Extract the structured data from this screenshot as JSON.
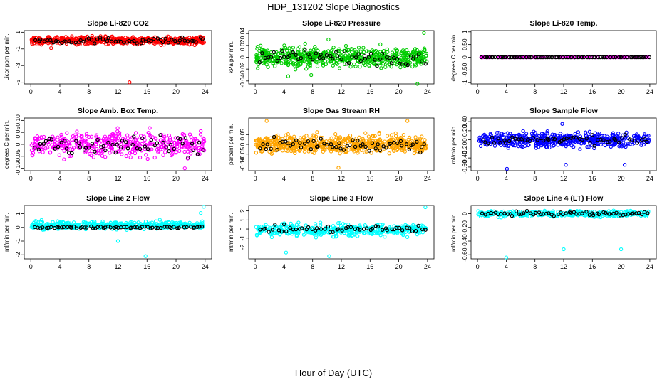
{
  "page_title": "HDP_131202  Slope Diagnostics",
  "xlabel": "Hour of Day (UTC)",
  "chart_data": [
    {
      "type": "scatter",
      "title": "Slope Li-820 CO2",
      "ylabel": "Licor ppm per min.",
      "color": "#ff0000",
      "xlim": [
        0,
        24
      ],
      "ylim": [
        -5.2,
        1.2
      ],
      "yticks": [
        -5,
        -3,
        -1,
        1
      ],
      "xticks": [
        0,
        4,
        8,
        12,
        16,
        20,
        24
      ],
      "main": {
        "center": 0.0,
        "spread": 0.35,
        "n": 600
      },
      "outliers": [
        {
          "x": 2.8,
          "y": -0.9
        },
        {
          "x": 13.6,
          "y": -5.0
        }
      ],
      "black": {
        "n": 60,
        "center": 0.0,
        "spread": 0.3
      }
    },
    {
      "type": "scatter",
      "title": "Slope Li-820 Pressure",
      "ylabel": "kPa per min.",
      "color": "#00cc00",
      "xlim": [
        0,
        24
      ],
      "ylim": [
        -0.045,
        0.045
      ],
      "yticks": [
        -0.04,
        -0.02,
        0.0,
        0.02,
        0.04
      ],
      "xticks": [
        0,
        4,
        8,
        12,
        16,
        20,
        24
      ],
      "main": {
        "center": 0.0,
        "spread": 0.013,
        "n": 600
      },
      "outliers": [
        {
          "x": 23.5,
          "y": 0.041
        },
        {
          "x": 10.2,
          "y": 0.03
        },
        {
          "x": 4.6,
          "y": -0.032
        },
        {
          "x": 22.6,
          "y": -0.045
        },
        {
          "x": 7.8,
          "y": -0.03
        }
      ],
      "black": {
        "n": 60,
        "center": 0.0,
        "spread": 0.01
      }
    },
    {
      "type": "scatter",
      "title": "Slope Li-820 Temp.",
      "ylabel": "degrees C per min.",
      "color": "#ff00ff",
      "xlim": [
        0,
        24
      ],
      "ylim": [
        -1.05,
        1.05
      ],
      "yticks": [
        -1.0,
        -0.5,
        0.0,
        0.5,
        1.0
      ],
      "xticks": [
        0,
        4,
        8,
        12,
        16,
        20,
        24
      ],
      "main": {
        "center": 0.0,
        "spread": 0.0,
        "n": 120
      },
      "outliers": [],
      "black": {
        "n": 90,
        "center": 0.0,
        "spread": 0.0
      }
    },
    {
      "type": "scatter",
      "title": "Slope Amb. Box Temp.",
      "ylabel": "degrees C per min.",
      "color": "#ff00ff",
      "xlim": [
        0,
        24
      ],
      "ylim": [
        -0.11,
        0.11
      ],
      "yticks": [
        -0.1,
        -0.05,
        0.0,
        0.05,
        0.1
      ],
      "xticks": [
        0,
        4,
        8,
        12,
        16,
        20,
        24
      ],
      "main": {
        "center": 0.0,
        "spread": 0.04,
        "n": 450
      },
      "outliers": [
        {
          "x": 21.2,
          "y": -0.1
        }
      ],
      "black": {
        "n": 60,
        "center": 0.0,
        "spread": 0.035
      }
    },
    {
      "type": "scatter",
      "title": "Slope Gas Stream RH",
      "ylabel": "percent per min.",
      "color": "#ffa500",
      "xlim": [
        0,
        24
      ],
      "ylim": [
        -0.135,
        0.135
      ],
      "yticks": [
        -0.1,
        -0.05,
        0.0,
        0.05
      ],
      "xticks": [
        0,
        4,
        8,
        12,
        16,
        20,
        24
      ],
      "main": {
        "center": 0.0,
        "spread": 0.035,
        "n": 650
      },
      "outliers": [
        {
          "x": 1.6,
          "y": 0.12
        },
        {
          "x": 21.2,
          "y": 0.12
        },
        {
          "x": 11.6,
          "y": -0.12
        }
      ],
      "black": {
        "n": 60,
        "center": 0.0,
        "spread": 0.03
      }
    },
    {
      "type": "scatter",
      "title": "Slope Sample Flow",
      "ylabel": "ml/min per min.",
      "color": "#0000ff",
      "xlim": [
        0,
        24
      ],
      "ylim": [
        -0.68,
        0.48
      ],
      "yticks": [
        -0.6,
        -0.4,
        -0.2,
        0.0,
        0.2,
        0.4
      ],
      "xticks": [
        0,
        4,
        8,
        12,
        16,
        20,
        24
      ],
      "main": {
        "center": 0.0,
        "spread": 0.13,
        "n": 500
      },
      "outliers": [
        {
          "x": 4.1,
          "y": -0.64
        },
        {
          "x": 12.3,
          "y": -0.55
        },
        {
          "x": 20.5,
          "y": -0.55
        },
        {
          "x": 11.8,
          "y": 0.35
        }
      ],
      "black": {
        "n": 55,
        "center": 0.0,
        "spread": 0.08
      }
    },
    {
      "type": "scatter",
      "title": "Slope Line 2 Flow",
      "ylabel": "ml/min per min.",
      "color": "#00ffff",
      "xlim": [
        0,
        24
      ],
      "ylim": [
        -2.3,
        1.6
      ],
      "yticks": [
        -2,
        -1,
        0,
        1
      ],
      "xticks": [
        0,
        4,
        8,
        12,
        16,
        20,
        24
      ],
      "main": {
        "center": 0.15,
        "spread": 0.22,
        "n": 450
      },
      "outliers": [
        {
          "x": 12.0,
          "y": -1.0
        },
        {
          "x": 15.8,
          "y": -2.1
        },
        {
          "x": 23.8,
          "y": 1.5
        },
        {
          "x": 23.4,
          "y": 1.05
        }
      ],
      "black": {
        "n": 65,
        "center": 0.0,
        "spread": 0.06
      }
    },
    {
      "type": "scatter",
      "title": "Slope Line 3 Flow",
      "ylabel": "ml/min per min.",
      "color": "#00ffff",
      "xlim": [
        0,
        24
      ],
      "ylim": [
        -3.3,
        2.6
      ],
      "yticks": [
        -2,
        -1,
        0,
        1,
        2
      ],
      "xticks": [
        0,
        4,
        8,
        12,
        16,
        20,
        24
      ],
      "main": {
        "center": -0.1,
        "spread": 0.55,
        "n": 420
      },
      "outliers": [
        {
          "x": 23.7,
          "y": 2.4
        },
        {
          "x": 4.3,
          "y": -2.6
        },
        {
          "x": 10.3,
          "y": -3.0
        }
      ],
      "black": {
        "n": 55,
        "center": 0.0,
        "spread": 0.3
      }
    },
    {
      "type": "scatter",
      "title": "Slope Line 4 (LT) Flow",
      "ylabel": "ml/min per min.",
      "color": "#00ffff",
      "xlim": [
        0,
        24
      ],
      "ylim": [
        -0.66,
        0.12
      ],
      "yticks": [
        -0.6,
        -0.4,
        -0.2,
        0.0
      ],
      "xticks": [
        0,
        4,
        8,
        12,
        16,
        20,
        24
      ],
      "main": {
        "center": 0.0,
        "spread": 0.035,
        "n": 380
      },
      "outliers": [
        {
          "x": 4.0,
          "y": -0.64
        },
        {
          "x": 12.0,
          "y": -0.52
        },
        {
          "x": 20.0,
          "y": -0.52
        }
      ],
      "black": {
        "n": 60,
        "center": 0.0,
        "spread": 0.025
      }
    }
  ]
}
